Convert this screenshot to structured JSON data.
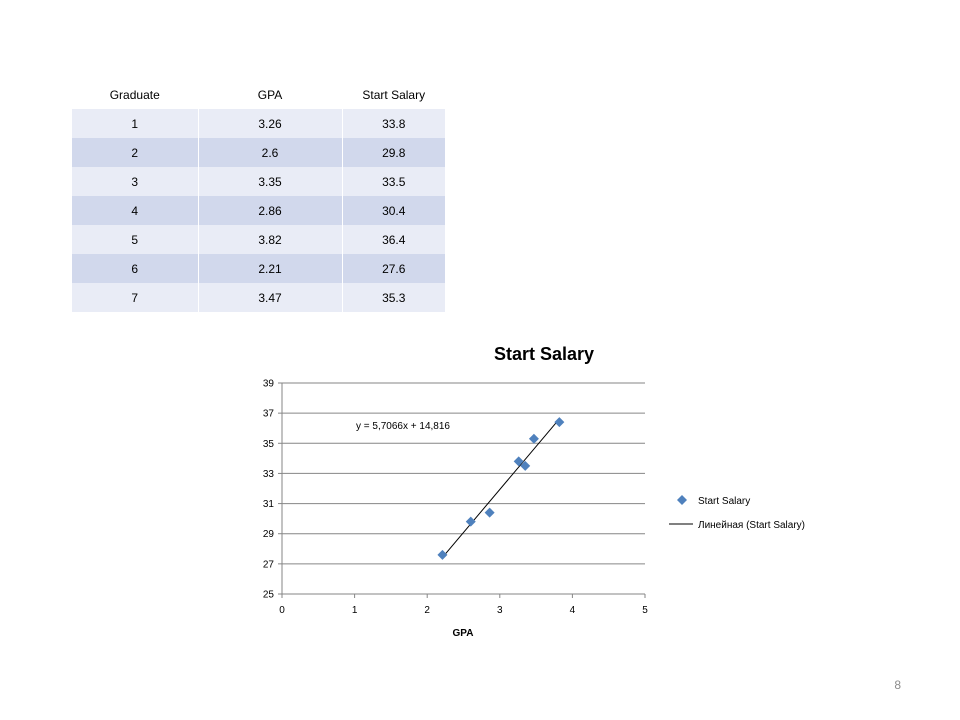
{
  "table": {
    "headers": [
      "Graduate",
      "GPA",
      "Start Salary"
    ],
    "rows": [
      [
        "1",
        "3.26",
        "33.8"
      ],
      [
        "2",
        "2.6",
        "29.8"
      ],
      [
        "3",
        "3.35",
        "33.5"
      ],
      [
        "4",
        "2.86",
        "30.4"
      ],
      [
        "5",
        "3.82",
        "36.4"
      ],
      [
        "6",
        "2.21",
        "27.6"
      ],
      [
        "7",
        "3.47",
        "35.3"
      ]
    ]
  },
  "chart_data": {
    "type": "scatter",
    "title": "Start Salary",
    "xlabel": "GPA",
    "ylabel": "",
    "xlim": [
      0,
      5
    ],
    "ylim": [
      25,
      39
    ],
    "xticks": [
      0,
      1,
      2,
      3,
      4,
      5
    ],
    "yticks": [
      25,
      27,
      29,
      31,
      33,
      35,
      37,
      39
    ],
    "grid": "horizontal",
    "legend_position": "right",
    "series": [
      {
        "name": "Start Salary",
        "marker": "diamond",
        "color": "#4f81bd",
        "x": [
          3.26,
          2.6,
          3.35,
          2.86,
          3.82,
          2.21,
          3.47
        ],
        "y": [
          33.8,
          29.8,
          33.5,
          30.4,
          36.4,
          27.6,
          35.3
        ]
      }
    ],
    "trendline": {
      "name": "Линейная (Start Salary)",
      "type": "linear",
      "slope": 5.7066,
      "intercept": 14.816,
      "equation": "y = 5,7066x + 14,816",
      "color": "#000000"
    }
  },
  "page_number": "8"
}
